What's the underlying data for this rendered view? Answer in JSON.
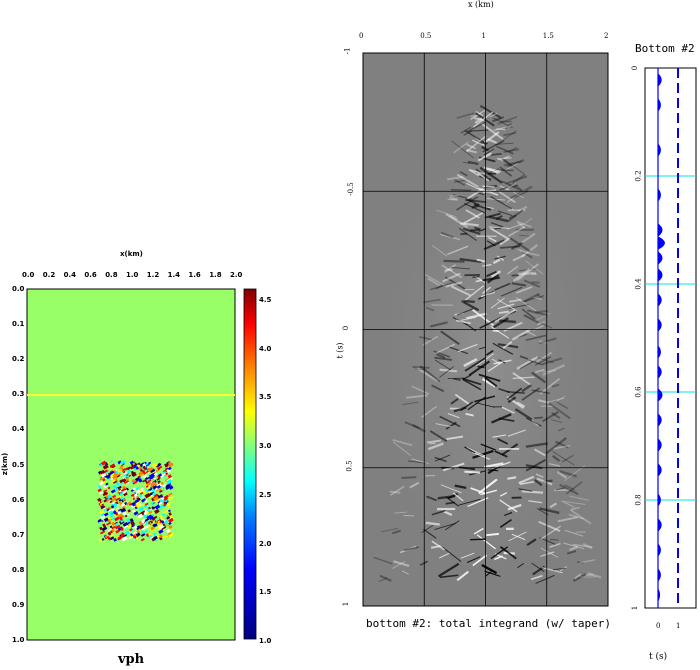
{
  "left": {
    "x_label": "x(km)",
    "z_label": "z(km)",
    "x_ticks": [
      "0.0",
      "0.2",
      "0.4",
      "0.6",
      "0.8",
      "1.0",
      "1.2",
      "1.4",
      "1.6",
      "1.8",
      "2.0"
    ],
    "z_ticks": [
      "0.0",
      "0.1",
      "0.2",
      "0.3",
      "0.4",
      "0.5",
      "0.6",
      "0.7",
      "0.8",
      "0.9",
      "1.0"
    ],
    "colorbar_ticks": [
      "4.5",
      "4.0",
      "3.5",
      "3.0",
      "2.5",
      "2.0",
      "1.5",
      "1.0"
    ],
    "title": "vph",
    "colors": {
      "background": "#99ff66",
      "line": "#ffff33"
    }
  },
  "middle": {
    "x_label": "x (km)",
    "y_label": "t (s)",
    "x_ticks": [
      "0",
      "0.5",
      "1",
      "1.5",
      "2"
    ],
    "y_ticks": [
      "-1",
      "-0.5",
      "0",
      "0.5",
      "1"
    ],
    "caption": "bottom #2: total integrand (w/ taper)",
    "colors": {
      "background": "#808080"
    }
  },
  "right": {
    "title": "Bottom #2",
    "y_ticks": [
      "0",
      "0.2",
      "0.4",
      "0.6",
      "0.8",
      "1"
    ],
    "x_ticks": [
      "0",
      "1"
    ],
    "x_label": "t (s)",
    "colors": {
      "trace": "#0000ff",
      "marker": "#00e5e5"
    }
  }
}
